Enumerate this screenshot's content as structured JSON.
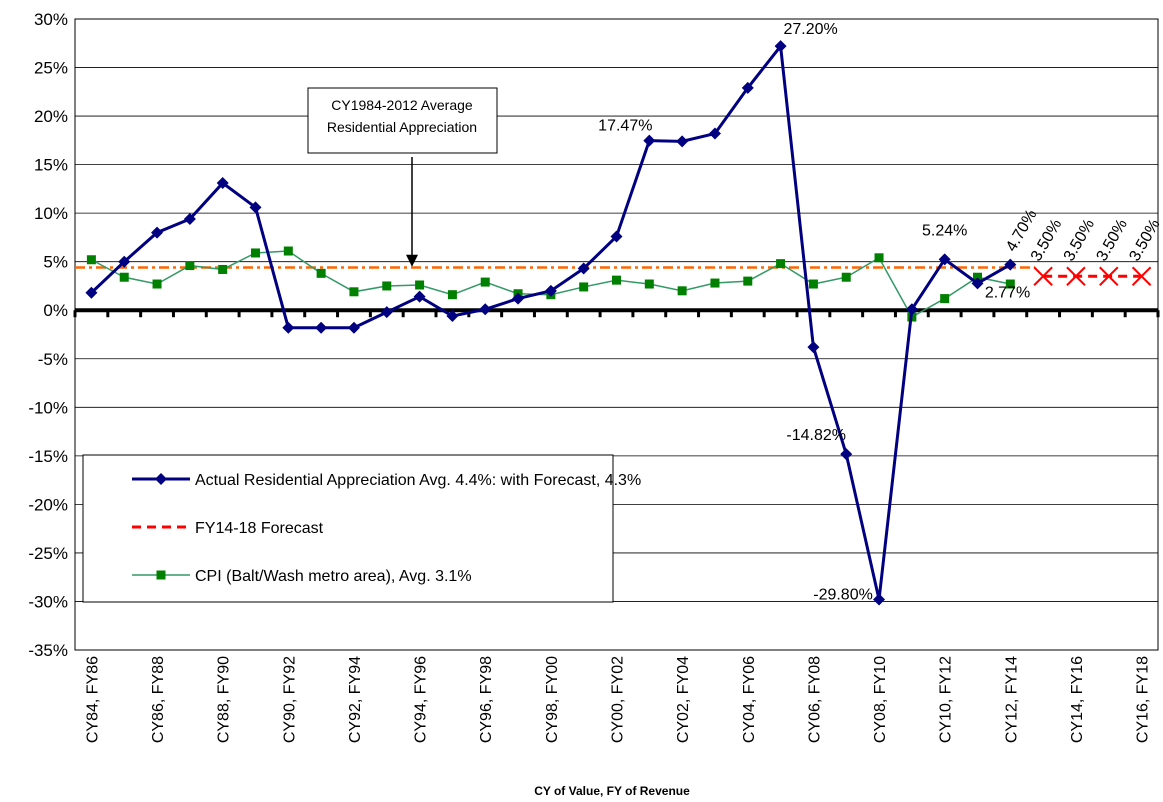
{
  "chart_data": {
    "type": "line",
    "xlabel": "CY of Value, FY of Revenue",
    "categories": [
      "CY84, FY86",
      null,
      "CY86, FY88",
      null,
      "CY88, FY90",
      null,
      "CY90, FY92",
      null,
      "CY92, FY94",
      null,
      "CY94, FY96",
      null,
      "CY96, FY98",
      null,
      "CY98, FY00",
      null,
      "CY00, FY02",
      null,
      "CY02, FY04",
      null,
      "CY04, FY06",
      null,
      "CY06, FY08",
      null,
      "CY08, FY10",
      null,
      "CY10, FY12",
      null,
      "CY12, FY14",
      null,
      "CY14, FY16",
      null,
      "CY16, FY18"
    ],
    "series": [
      {
        "name": "Actual Residential Appreciation Avg. 4.4%: with Forecast, 4.3%",
        "color": "#000080",
        "marker": "diamond",
        "values": [
          1.8,
          5.0,
          8.0,
          9.4,
          13.1,
          10.6,
          -1.8,
          -1.8,
          -1.8,
          -0.2,
          1.4,
          -0.6,
          0.1,
          1.2,
          2.0,
          4.3,
          7.6,
          17.47,
          17.4,
          18.2,
          22.9,
          27.2,
          -3.8,
          -14.82,
          -29.8,
          0.1,
          5.24,
          2.77,
          4.7,
          null,
          null,
          null,
          null
        ],
        "value_labels": [
          null,
          null,
          null,
          null,
          null,
          null,
          null,
          null,
          null,
          null,
          null,
          null,
          null,
          null,
          null,
          null,
          null,
          "17.47%",
          null,
          null,
          null,
          "27.20%",
          null,
          "-14.82%",
          "-29.80%",
          null,
          "5.24%",
          "2.77%",
          "4.70%",
          null,
          null,
          null,
          null
        ]
      },
      {
        "name": "FY14-18 Forecast",
        "color": "#ff0000",
        "marker": "x",
        "dashed": true,
        "values": [
          null,
          null,
          null,
          null,
          null,
          null,
          null,
          null,
          null,
          null,
          null,
          null,
          null,
          null,
          null,
          null,
          null,
          null,
          null,
          null,
          null,
          null,
          null,
          null,
          null,
          null,
          null,
          null,
          null,
          3.5,
          3.5,
          3.5,
          3.5
        ],
        "value_labels": [
          null,
          null,
          null,
          null,
          null,
          null,
          null,
          null,
          null,
          null,
          null,
          null,
          null,
          null,
          null,
          null,
          null,
          null,
          null,
          null,
          null,
          null,
          null,
          null,
          null,
          null,
          null,
          null,
          null,
          "3.50%",
          "3.50%",
          "3.50%",
          "3.50%"
        ]
      },
      {
        "name": "CPI (Balt/Wash metro area), Avg. 3.1%",
        "color": "#008000",
        "line_color": "#339966",
        "marker": "square",
        "values": [
          5.2,
          3.4,
          2.7,
          4.6,
          4.2,
          5.9,
          6.1,
          3.8,
          1.9,
          2.5,
          2.6,
          1.6,
          2.9,
          1.7,
          1.6,
          2.4,
          3.1,
          2.7,
          2.0,
          2.8,
          3.0,
          4.8,
          2.7,
          3.4,
          5.4,
          -0.7,
          1.2,
          3.4,
          2.7,
          null,
          null,
          null,
          null
        ]
      }
    ],
    "average_line": {
      "value": 4.4,
      "color": "#ff6600"
    },
    "annotation": {
      "lines": [
        "CY1984-2012 Average",
        "Residential Appreciation"
      ]
    },
    "ylim": [
      -35,
      30
    ],
    "yticks": [
      {
        "value": -35,
        "label": "-35%"
      },
      {
        "value": -30,
        "label": "-30%"
      },
      {
        "value": -25,
        "label": "-25%"
      },
      {
        "value": -20,
        "label": "-20%"
      },
      {
        "value": -15,
        "label": "-15%"
      },
      {
        "value": -10,
        "label": "-10%"
      },
      {
        "value": -5,
        "label": "-5%"
      },
      {
        "value": 0,
        "label": "0%"
      },
      {
        "value": 5,
        "label": "5%"
      },
      {
        "value": 10,
        "label": "10%"
      },
      {
        "value": 15,
        "label": "15%"
      },
      {
        "value": 20,
        "label": "20%"
      },
      {
        "value": 25,
        "label": "25%"
      },
      {
        "value": 30,
        "label": "30%"
      }
    ],
    "grid": true,
    "legend": "lower left"
  }
}
